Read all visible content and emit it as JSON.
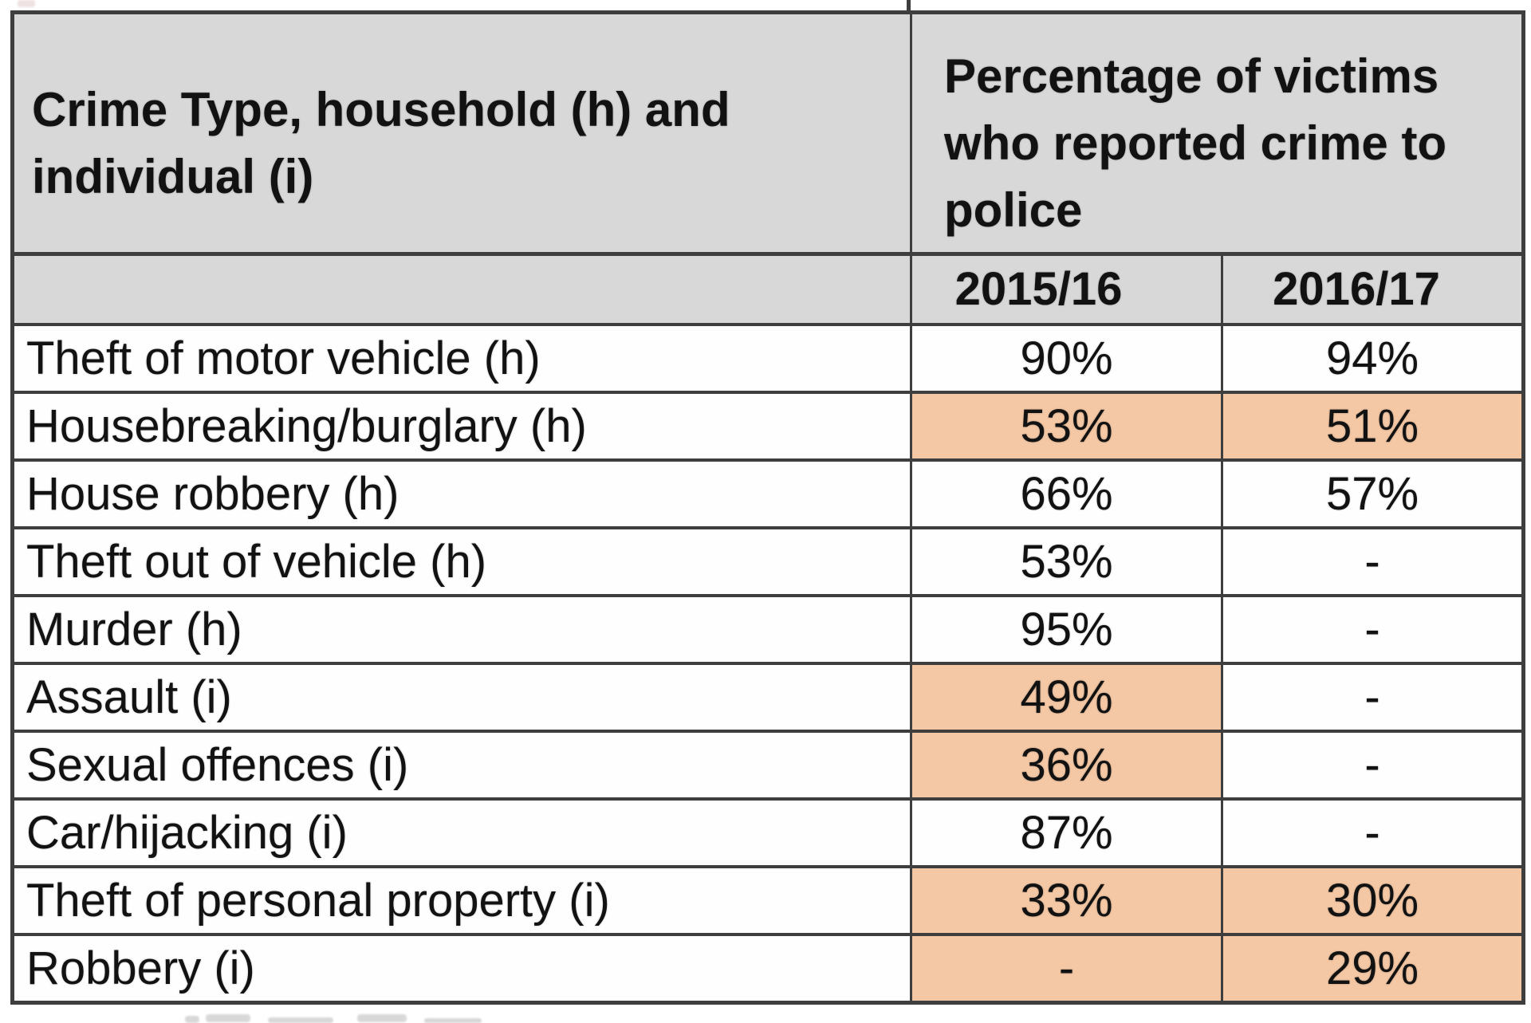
{
  "table": {
    "header": {
      "col1_text": "Crime Type, household (h) and individual (i)",
      "col1_lines": [
        "Crime Type, household (h) and",
        "individual (i)"
      ],
      "col2_text": "Percentage of victims who reported crime to police",
      "col2_lines": [
        "Percentage of victims",
        "who reported crime to",
        "police"
      ],
      "years": [
        "2015/16",
        "2016/17"
      ]
    },
    "rows": [
      {
        "label": "Theft of motor vehicle (h)",
        "y2015": "90%",
        "y2016": "94%",
        "hl15": false,
        "hl16": false
      },
      {
        "label": "Housebreaking/burglary (h)",
        "y2015": "53%",
        "y2016": "51%",
        "hl15": true,
        "hl16": true
      },
      {
        "label": "House robbery (h)",
        "y2015": "66%",
        "y2016": "57%",
        "hl15": false,
        "hl16": false
      },
      {
        "label": "Theft out of vehicle (h)",
        "y2015": "53%",
        "y2016": "-",
        "hl15": false,
        "hl16": false
      },
      {
        "label": "Murder (h)",
        "y2015": "95%",
        "y2016": "-",
        "hl15": false,
        "hl16": false
      },
      {
        "label": "Assault (i)",
        "y2015": "49%",
        "y2016": "-",
        "hl15": true,
        "hl16": false
      },
      {
        "label": "Sexual offences (i)",
        "y2015": "36%",
        "y2016": "-",
        "hl15": true,
        "hl16": false
      },
      {
        "label": "Car/hijacking (i)",
        "y2015": "87%",
        "y2016": "-",
        "hl15": false,
        "hl16": false
      },
      {
        "label": "Theft of personal property (i)",
        "y2015": "33%",
        "y2016": "30%",
        "hl15": true,
        "hl16": true
      },
      {
        "label": "Robbery (i)",
        "y2015": "-",
        "y2016": "29%",
        "hl15": true,
        "hl16": true
      }
    ],
    "colors": {
      "highlight": "#f4c8a5",
      "header_background": "#d8d8d8",
      "border": "#3e3e3e"
    }
  },
  "chart_data": {
    "type": "table",
    "title": "Percentage of victims who reported crime to police",
    "categories": [
      "Theft of motor vehicle (h)",
      "Housebreaking/burglary (h)",
      "House robbery (h)",
      "Theft out of vehicle (h)",
      "Murder (h)",
      "Assault (i)",
      "Sexual offences (i)",
      "Car/hijacking (i)",
      "Theft of personal property (i)",
      "Robbery (i)"
    ],
    "series": [
      {
        "name": "2015/16",
        "values": [
          "90%",
          "53%",
          "66%",
          "53%",
          "95%",
          "49%",
          "36%",
          "87%",
          "33%",
          "-"
        ]
      },
      {
        "name": "2016/17",
        "values": [
          "94%",
          "51%",
          "57%",
          "-",
          "-",
          "-",
          "-",
          "-",
          "30%",
          "29%"
        ]
      }
    ],
    "highlighted_cells": [
      {
        "category": "Housebreaking/burglary (h)",
        "series": [
          "2015/16",
          "2016/17"
        ]
      },
      {
        "category": "Assault (i)",
        "series": [
          "2015/16"
        ]
      },
      {
        "category": "Sexual offences (i)",
        "series": [
          "2015/16"
        ]
      },
      {
        "category": "Theft of personal property (i)",
        "series": [
          "2015/16",
          "2016/17"
        ]
      },
      {
        "category": "Robbery (i)",
        "series": [
          "2015/16",
          "2016/17"
        ]
      }
    ],
    "highlight_color": "#f4c8a5",
    "layout": {
      "grid": true,
      "header_background": "#d8d8d8"
    }
  }
}
